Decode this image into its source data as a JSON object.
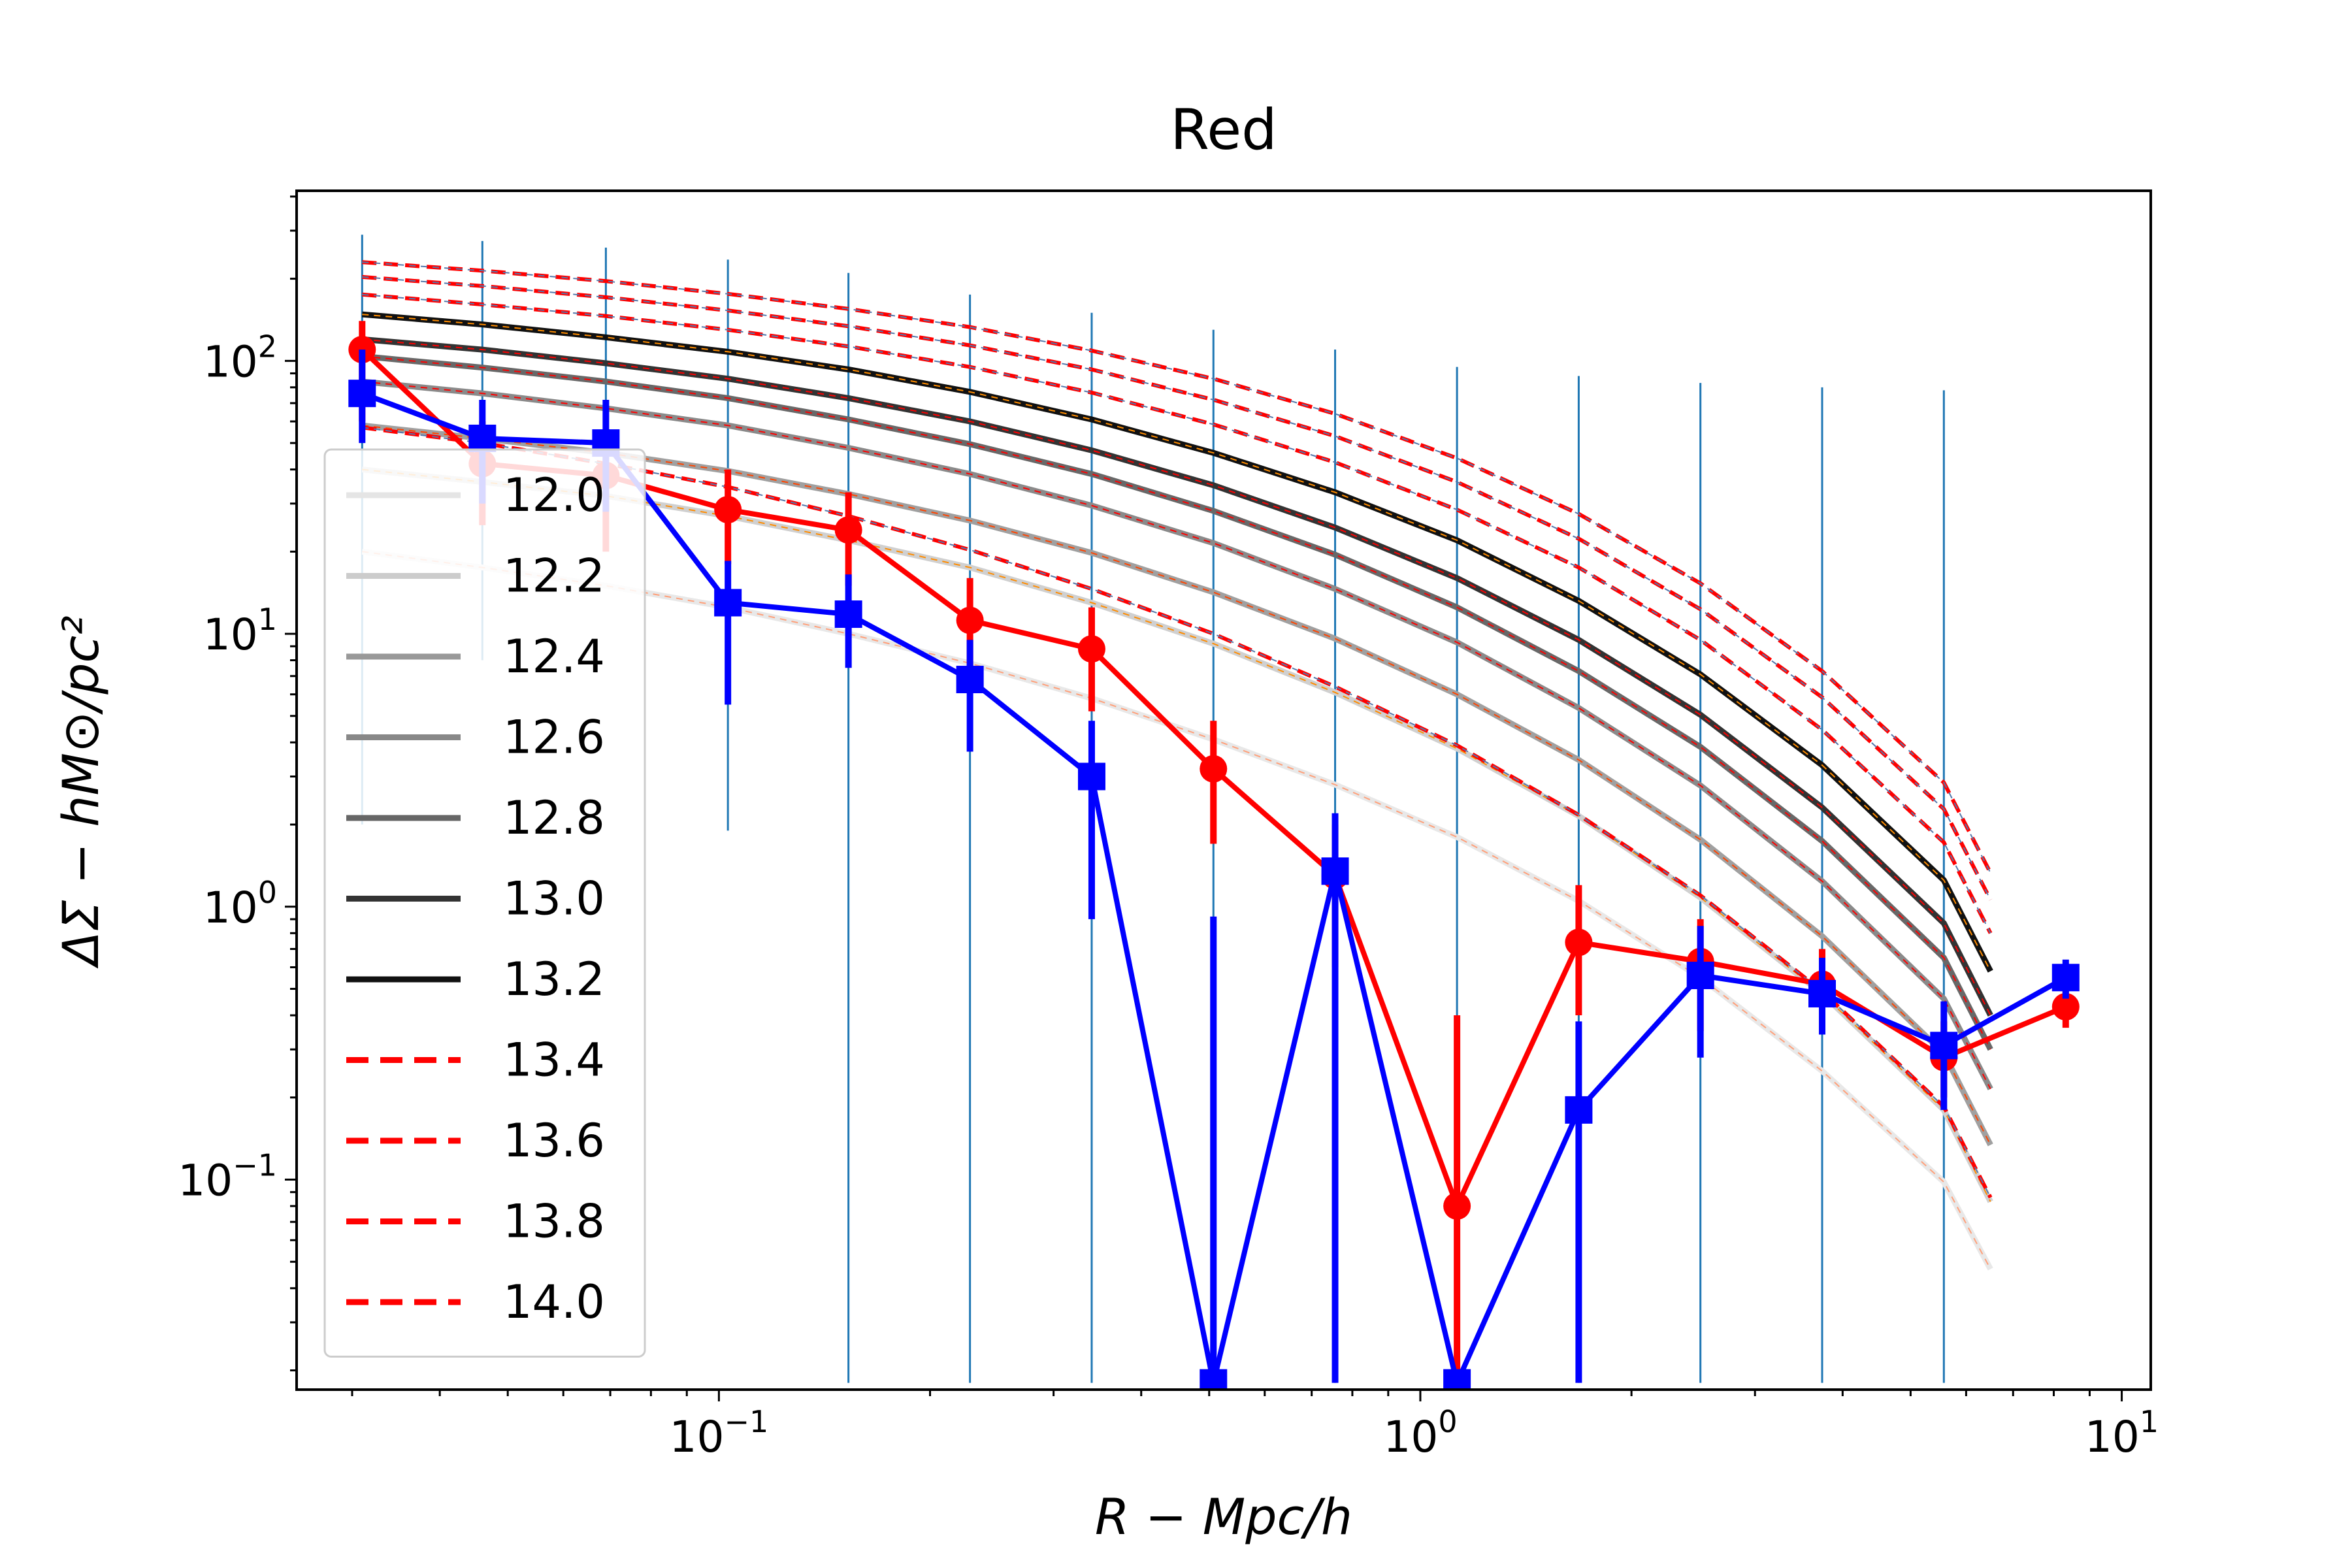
{
  "chart_data": {
    "type": "line",
    "title": "Red",
    "xlabel": "R − Mpc/h",
    "ylabel": "ΔΣ − hM⊙/pc²",
    "xscale": "log",
    "yscale": "log",
    "xlim": [
      0.025,
      11
    ],
    "ylim": [
      0.017,
      420
    ],
    "x_ticks": [
      {
        "value": 0.1,
        "base": "10",
        "exp": "−1"
      },
      {
        "value": 1,
        "base": "10",
        "exp": "0"
      },
      {
        "value": 10,
        "base": "10",
        "exp": "1"
      }
    ],
    "y_ticks": [
      {
        "value": 0.1,
        "base": "10",
        "exp": "−1"
      },
      {
        "value": 1,
        "base": "10",
        "exp": "0"
      },
      {
        "value": 10,
        "base": "10",
        "exp": "1"
      },
      {
        "value": 100,
        "base": "10",
        "exp": "2"
      }
    ],
    "grid": false,
    "legend_position": "lower-left",
    "legend": [
      {
        "label": "12.0",
        "color": "#e5e5e5",
        "dash": false
      },
      {
        "label": "12.2",
        "color": "#cccccc",
        "dash": false
      },
      {
        "label": "12.4",
        "color": "#999999",
        "dash": false
      },
      {
        "label": "12.6",
        "color": "#888888",
        "dash": false
      },
      {
        "label": "12.8",
        "color": "#666666",
        "dash": false
      },
      {
        "label": "13.0",
        "color": "#333333",
        "dash": false
      },
      {
        "label": "13.2",
        "color": "#111111",
        "dash": false
      },
      {
        "label": "13.4",
        "color": "#ff0000",
        "dash": true
      },
      {
        "label": "13.6",
        "color": "#ff0000",
        "dash": true
      },
      {
        "label": "13.8",
        "color": "#ff0000",
        "dash": true
      },
      {
        "label": "14.0",
        "color": "#ff0000",
        "dash": true
      }
    ],
    "model_x": [
      0.031,
      0.046,
      0.069,
      0.103,
      0.153,
      0.228,
      0.34,
      0.507,
      0.756,
      1.128,
      1.682,
      2.508,
      3.74,
      5.577,
      6.5
    ],
    "model_curves": [
      {
        "color": "#e8e8e8",
        "dash": false,
        "highlight": "#ffa07a",
        "y": [
          20,
          17.5,
          15,
          12.5,
          10,
          7.8,
          5.8,
          4.1,
          2.8,
          1.8,
          1.05,
          0.55,
          0.25,
          0.098,
          0.047
        ]
      },
      {
        "color": "#d0d0d0",
        "dash": false,
        "highlight": "#ff8c00",
        "y": [
          40,
          36,
          32,
          27,
          22,
          17.5,
          13,
          9.2,
          6.1,
          3.8,
          2.15,
          1.08,
          0.48,
          0.18,
          0.083
        ]
      },
      {
        "color": "#a0a0a0",
        "dash": false,
        "highlight": "#ff4500",
        "y": [
          58,
          52,
          46,
          39.5,
          32.5,
          26,
          19.8,
          14.2,
          9.6,
          6,
          3.45,
          1.76,
          0.78,
          0.29,
          0.134
        ]
      },
      {
        "color": "#8a8a8a",
        "dash": false,
        "highlight": "#ff0000",
        "y": [
          84,
          76,
          67,
          58,
          48,
          38.5,
          29.5,
          21.5,
          14.6,
          9.3,
          5.35,
          2.78,
          1.24,
          0.46,
          0.215
        ]
      },
      {
        "color": "#686868",
        "dash": false,
        "highlight": "#ff0000",
        "y": [
          104,
          94.5,
          84,
          73,
          61,
          49.5,
          38.5,
          28.2,
          19.5,
          12.5,
          7.3,
          3.85,
          1.74,
          0.65,
          0.3
        ]
      },
      {
        "color": "#333333",
        "dash": false,
        "highlight": "#ff0000",
        "y": [
          120,
          110,
          98,
          86,
          73,
          60,
          47,
          35,
          24.5,
          16,
          9.5,
          5.05,
          2.31,
          0.87,
          0.4
        ]
      },
      {
        "color": "#111111",
        "dash": false,
        "highlight": "#ff8c00",
        "y": [
          148,
          136,
          122,
          108,
          93,
          77,
          61,
          46,
          33,
          22,
          13.2,
          7.1,
          3.3,
          1.25,
          0.58
        ]
      },
      {
        "color": "#ff0000",
        "dash": true,
        "highlight": "#5577aa",
        "y": [
          57,
          50,
          42,
          34.5,
          27,
          20.3,
          14.6,
          10,
          6.4,
          3.9,
          2.17,
          1.1,
          0.49,
          0.185,
          0.086
        ]
      },
      {
        "color": "#ff0000",
        "dash": true,
        "highlight": "#5577aa",
        "y": [
          175,
          161,
          146,
          130,
          113,
          95,
          76.5,
          58.5,
          42.5,
          28.5,
          17.5,
          9.5,
          4.45,
          1.72,
          0.8
        ]
      },
      {
        "color": "#ff0000",
        "dash": true,
        "highlight": "#5577aa",
        "y": [
          203,
          188,
          171,
          153,
          134,
          114,
          93,
          72,
          53,
          36,
          22.3,
          12.3,
          5.85,
          2.28,
          1.06
        ]
      },
      {
        "color": "#ff0000",
        "dash": true,
        "highlight": "#5577aa",
        "y": [
          230,
          214,
          196,
          176,
          155,
          133,
          109,
          86,
          64,
          44,
          27.5,
          15.3,
          7.3,
          2.85,
          1.33
        ]
      }
    ],
    "thin_errorbars": [
      {
        "x": 0.031,
        "y_low": 2,
        "y_high": 290
      },
      {
        "x": 0.046,
        "y_low": 8,
        "y_high": 275
      },
      {
        "x": 0.069,
        "y_low": 35,
        "y_high": 260
      },
      {
        "x": 0.103,
        "y_low": 1.9,
        "y_high": 235
      },
      {
        "x": 0.153,
        "y_low": 0.018,
        "y_high": 210
      },
      {
        "x": 0.228,
        "y_low": 0.018,
        "y_high": 175
      },
      {
        "x": 0.34,
        "y_low": 0.018,
        "y_high": 150
      },
      {
        "x": 0.507,
        "y_low": 0.018,
        "y_high": 130
      },
      {
        "x": 0.756,
        "y_low": 0.018,
        "y_high": 110
      },
      {
        "x": 1.128,
        "y_low": 0.018,
        "y_high": 95
      },
      {
        "x": 1.682,
        "y_low": 0.018,
        "y_high": 88
      },
      {
        "x": 2.508,
        "y_low": 0.018,
        "y_high": 83
      },
      {
        "x": 3.74,
        "y_low": 0.018,
        "y_high": 80
      },
      {
        "x": 5.577,
        "y_low": 0.018,
        "y_high": 78
      }
    ],
    "series": [
      {
        "name": "",
        "color": "#ff0000",
        "marker": "circle",
        "x": [
          0.031,
          0.046,
          0.069,
          0.103,
          0.153,
          0.228,
          0.34,
          0.507,
          0.756,
          1.128,
          1.682,
          2.508,
          3.74,
          5.577,
          8.32
        ],
        "y": [
          110,
          42,
          38,
          28.5,
          24,
          11.2,
          8.8,
          3.2,
          1.3,
          0.08,
          0.74,
          0.63,
          0.52,
          0.28,
          0.43
        ],
        "y_low": [
          60,
          25,
          20,
          18,
          15,
          6.6,
          5.2,
          1.7,
          0.6,
          0.018,
          0.4,
          0.35,
          0.34,
          0.2,
          0.36
        ],
        "y_high": [
          140,
          60,
          54,
          40,
          33,
          16,
          12.5,
          4.8,
          2,
          0.4,
          1.2,
          0.9,
          0.7,
          0.38,
          0.5
        ]
      },
      {
        "name": "",
        "color": "#0000ff",
        "marker": "square",
        "x": [
          0.031,
          0.046,
          0.069,
          0.103,
          0.153,
          0.228,
          0.34,
          0.507,
          0.756,
          1.128,
          1.682,
          2.508,
          3.74,
          5.577,
          8.32
        ],
        "y": [
          76,
          52,
          50,
          13,
          11.8,
          6.8,
          3,
          0.018,
          1.35,
          0.018,
          0.18,
          0.56,
          0.48,
          0.31,
          0.55
        ],
        "y_low": [
          50,
          30,
          28,
          5.5,
          7.5,
          3.7,
          0.9,
          0.018,
          0.018,
          0.018,
          0.018,
          0.28,
          0.34,
          0.18,
          0.46
        ],
        "y_high": [
          110,
          72,
          72,
          18.5,
          16.5,
          9.5,
          4.8,
          0.92,
          2.2,
          0.018,
          0.38,
          0.85,
          0.65,
          0.45,
          0.64
        ]
      }
    ]
  }
}
